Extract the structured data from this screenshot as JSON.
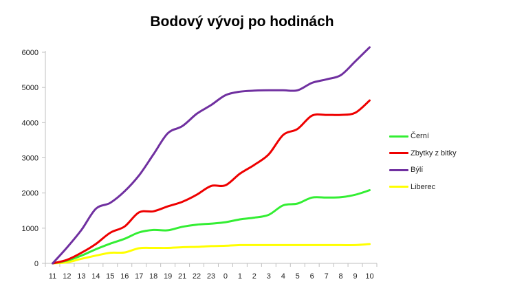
{
  "chart_data": {
    "type": "line",
    "title": "Bodový vývoj po hodinách",
    "categories": [
      "11",
      "12",
      "13",
      "14",
      "15",
      "16",
      "17",
      "18",
      "19",
      "21",
      "22",
      "23",
      "0",
      "1",
      "2",
      "3",
      "4",
      "5",
      "6",
      "7",
      "8",
      "9",
      "10"
    ],
    "ylim": [
      0,
      6000
    ],
    "yticks": [
      "0",
      "1000",
      "2000",
      "3000",
      "4000",
      "5000",
      "6000"
    ],
    "grid": false,
    "legend": "right",
    "series": [
      {
        "name": "Černí",
        "color": "#33ee33",
        "values": [
          0,
          80,
          220,
          400,
          560,
          700,
          880,
          950,
          940,
          1040,
          1100,
          1130,
          1170,
          1250,
          1300,
          1380,
          1650,
          1700,
          1870,
          1870,
          1880,
          1950,
          2080
        ]
      },
      {
        "name": "Zbytky z bitky",
        "color": "#ee0000",
        "values": [
          0,
          100,
          300,
          550,
          870,
          1050,
          1450,
          1480,
          1620,
          1750,
          1950,
          2200,
          2220,
          2550,
          2800,
          3100,
          3650,
          3820,
          4200,
          4220,
          4220,
          4280,
          4630
        ]
      },
      {
        "name": "Býlí",
        "color": "#7030a0",
        "values": [
          0,
          450,
          950,
          1550,
          1720,
          2050,
          2500,
          3100,
          3700,
          3900,
          4250,
          4500,
          4780,
          4880,
          4910,
          4920,
          4920,
          4920,
          5130,
          5230,
          5350,
          5740,
          6140
        ]
      },
      {
        "name": "Liberec",
        "color": "#ffff00",
        "values": [
          0,
          30,
          130,
          220,
          300,
          310,
          430,
          440,
          440,
          460,
          470,
          490,
          500,
          520,
          520,
          520,
          520,
          520,
          520,
          520,
          520,
          520,
          550
        ]
      }
    ]
  }
}
